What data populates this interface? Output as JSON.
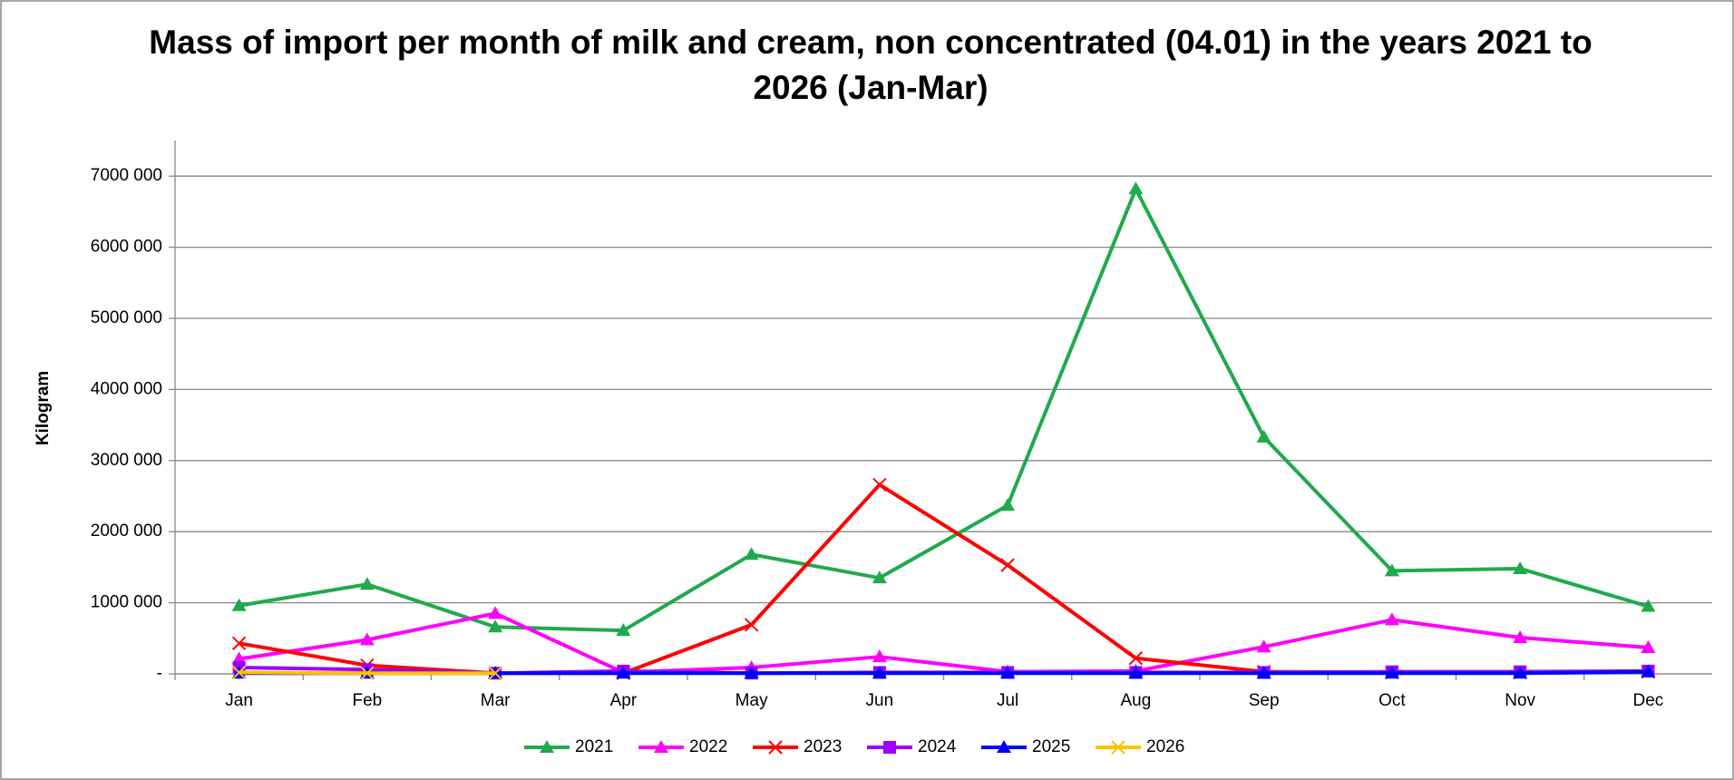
{
  "chart_data": {
    "type": "line",
    "title": "Mass of import per month of milk and cream, non concentrated (04.01) in the years 2021 to 2026 (Jan-Mar)",
    "y_label": "Kilogram",
    "categories": [
      "Jan",
      "Feb",
      "Mar",
      "Apr",
      "May",
      "Jun",
      "Jul",
      "Aug",
      "Sep",
      "Oct",
      "Nov",
      "Dec"
    ],
    "ylim": [
      0,
      7500000
    ],
    "yticks": [
      {
        "value": 0,
        "label": "-"
      },
      {
        "value": 1000000,
        "label": "1000 000"
      },
      {
        "value": 2000000,
        "label": "2000 000"
      },
      {
        "value": 3000000,
        "label": "3000 000"
      },
      {
        "value": 4000000,
        "label": "4000 000"
      },
      {
        "value": 5000000,
        "label": "5000 000"
      },
      {
        "value": 6000000,
        "label": "6000 000"
      },
      {
        "value": 7000000,
        "label": "7000 000"
      }
    ],
    "grid": true,
    "legend": "bottom",
    "series": [
      {
        "name": "2021",
        "color": "#1faa4b",
        "marker": "triangle",
        "values": [
          960000,
          1260000,
          660000,
          610000,
          1680000,
          1350000,
          2370000,
          6820000,
          3330000,
          1450000,
          1480000,
          950000
        ]
      },
      {
        "name": "2022",
        "color": "#ff00ff",
        "marker": "triangle",
        "values": [
          210000,
          480000,
          850000,
          20000,
          90000,
          240000,
          30000,
          40000,
          380000,
          760000,
          510000,
          370000
        ]
      },
      {
        "name": "2023",
        "color": "#ff0000",
        "marker": "x",
        "values": [
          430000,
          120000,
          10000,
          10000,
          690000,
          2660000,
          1530000,
          220000,
          30000,
          20000,
          20000,
          30000
        ]
      },
      {
        "name": "2024",
        "color": "#9900ff",
        "marker": "square",
        "values": [
          90000,
          60000,
          10000,
          40000,
          10000,
          20000,
          20000,
          20000,
          20000,
          30000,
          30000,
          40000
        ]
      },
      {
        "name": "2025",
        "color": "#0000ff",
        "marker": "triangle",
        "values": [
          10000,
          10000,
          10000,
          10000,
          10000,
          10000,
          10000,
          10000,
          10000,
          10000,
          10000,
          30000
        ]
      },
      {
        "name": "2026",
        "color": "#ffc000",
        "marker": "x",
        "values": [
          20000,
          10000,
          10000,
          null,
          null,
          null,
          null,
          null,
          null,
          null,
          null,
          null
        ]
      }
    ]
  }
}
